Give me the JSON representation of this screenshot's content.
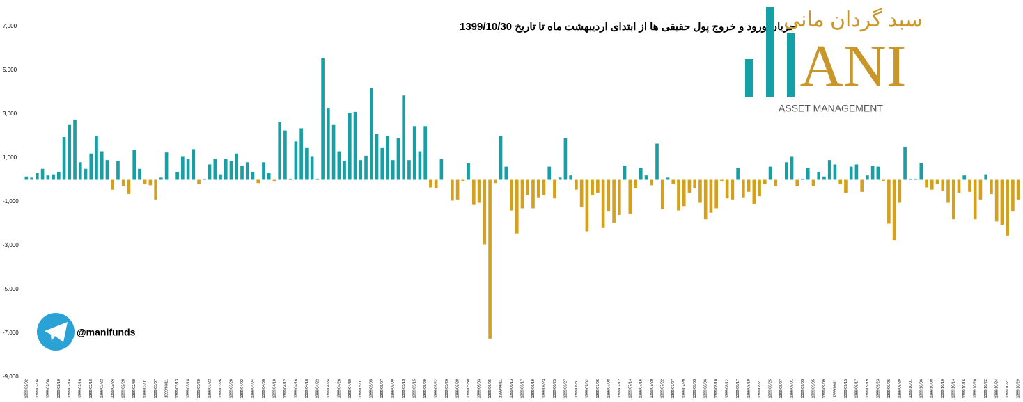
{
  "chart_data": {
    "type": "bar",
    "title": "جریان ورود و خروج پول حقیقی ها از ابتدای اردیبهشت ماه تا تاریخ 1399/10/30",
    "categories": [
      "1399/02/02",
      null,
      "1399/02/04",
      null,
      "1399/02/08",
      null,
      "1399/02/10",
      null,
      "1399/02/14",
      null,
      "1399/02/16",
      null,
      "1399/02/18",
      null,
      "1399/02/22",
      null,
      "1399/02/24",
      null,
      "1399/02/28",
      null,
      "1399/02/30",
      null,
      "1399/03/01",
      null,
      "1399/03/07",
      null,
      "1399/03/11",
      null,
      "1399/03/13",
      null,
      "1399/03/18",
      null,
      "1399/03/20",
      null,
      "1399/03/22",
      null,
      "1399/03/26",
      null,
      "1399/03/28",
      null,
      "1399/04/02",
      null,
      "1399/04/04",
      null,
      "1399/04/08",
      null,
      "1399/04/10",
      null,
      "1399/04/12",
      null,
      "1399/04/16",
      null,
      "1399/04/18",
      null,
      "1399/04/22",
      null,
      "1399/04/24",
      null,
      "1399/04/26",
      null,
      "1399/04/30",
      null,
      "1399/05/01",
      null,
      "1399/05/05",
      null,
      "1399/05/07",
      null,
      "1399/05/09",
      null,
      "1399/05/13",
      null,
      "1399/05/15",
      null,
      "1399/05/20",
      null,
      "1399/05/22",
      null,
      "1399/05/26",
      null,
      "1399/05/28",
      null,
      "1399/05/30",
      null,
      "1399/06/03",
      null,
      "1399/06/05",
      null,
      "1399/06/11",
      null,
      "1399/06/13",
      null,
      "1399/06/17",
      null,
      "1399/06/19",
      null,
      "1399/06/23",
      null,
      "1399/06/25",
      null,
      "1399/06/27",
      null,
      "1399/06/31",
      null,
      "1399/07/02",
      null,
      "1399/07/06",
      null,
      "1399/07/08",
      null,
      "1399/07/12",
      null,
      "1399/07/14",
      null,
      "1399/07/16",
      null,
      "1399/07/20",
      null,
      "1399/07/22",
      null,
      "1399/07/27",
      null,
      "1399/07/29",
      null,
      "1399/08/03",
      null,
      "1399/08/06",
      null,
      "1399/08/10",
      null,
      "1399/08/12",
      null,
      "1399/08/17",
      null,
      "1399/08/19",
      null,
      "1399/08/21",
      null,
      "1399/08/25",
      null,
      "1399/08/27",
      null,
      "1399/09/01",
      null,
      "1399/09/03",
      null,
      "1399/09/05",
      null,
      "1399/09/09",
      null,
      "1399/09/11",
      null,
      "1399/09/15",
      null,
      "1399/09/17",
      null,
      "1399/09/19",
      null,
      "1399/09/23",
      null,
      "1399/09/25",
      null,
      "1399/09/29",
      null,
      "1399/10/01",
      null,
      "1399/10/06",
      null,
      "1399/10/08",
      null,
      "1399/10/10",
      null,
      "1399/10/14",
      null,
      "1399/10/16",
      null,
      "1399/10/20",
      null,
      "1399/10/22",
      null,
      "1399/10/24",
      null,
      "1399/10/27",
      null,
      "1399/10/29"
    ],
    "values": [
      150,
      100,
      300,
      500,
      200,
      250,
      350,
      1950,
      2500,
      2750,
      800,
      500,
      1200,
      2000,
      1300,
      900,
      -450,
      850,
      -300,
      -650,
      1350,
      500,
      -200,
      -250,
      -900,
      100,
      1250,
      0,
      350,
      1050,
      950,
      1400,
      -200,
      50,
      700,
      950,
      250,
      950,
      850,
      1200,
      650,
      800,
      350,
      -150,
      800,
      300,
      -50,
      2650,
      2250,
      50,
      1750,
      2350,
      1450,
      1050,
      50,
      5550,
      3250,
      2500,
      1300,
      850,
      3050,
      3100,
      900,
      1100,
      4200,
      2100,
      1450,
      2000,
      900,
      1900,
      3850,
      900,
      2450,
      1300,
      2450,
      -350,
      -400,
      950,
      0,
      -950,
      -900,
      -50,
      750,
      -1150,
      -1050,
      -2950,
      -7250,
      -150,
      2000,
      600,
      -1400,
      -2450,
      -1300,
      -700,
      -1300,
      -800,
      -700,
      600,
      -850,
      100,
      1900,
      200,
      -450,
      -1250,
      -2350,
      -700,
      -600,
      -2200,
      -1450,
      -1950,
      -1600,
      650,
      -1550,
      -400,
      550,
      200,
      -250,
      1650,
      -1350,
      100,
      -200,
      -1400,
      -1200,
      -600,
      -400,
      -1050,
      -1800,
      -1500,
      -1300,
      -50,
      -850,
      -900,
      550,
      -800,
      -550,
      -1100,
      -750,
      -200,
      600,
      -300,
      0,
      800,
      1050,
      -300,
      50,
      550,
      -300,
      350,
      150,
      900,
      700,
      -200,
      -600,
      600,
      700,
      -550,
      200,
      650,
      600,
      -50,
      -2000,
      -2750,
      -1050,
      1500,
      50,
      50,
      750,
      -350,
      -450,
      -200,
      -500,
      -1050,
      -1800,
      -600,
      200,
      -550,
      -1800,
      -900,
      250,
      -650,
      -1900,
      -2050,
      -2550,
      -1450,
      -900
    ],
    "positive_color": "#16a0a6",
    "negative_color": "#d4a11e",
    "ylim": [
      -9000,
      7000
    ],
    "yticks": [
      {
        "value": -9000,
        "label": "-9,000"
      },
      {
        "value": -7000,
        "label": "-7,000"
      },
      {
        "value": -5000,
        "label": "-5,000"
      },
      {
        "value": -3000,
        "label": "-3,000"
      },
      {
        "value": -1000,
        "label": "-1,000"
      },
      {
        "value": 1000,
        "label": "1,000"
      },
      {
        "value": 3000,
        "label": "3,000"
      },
      {
        "value": 5000,
        "label": "5,000"
      },
      {
        "value": 7000,
        "label": "7,000"
      }
    ],
    "grid": false
  },
  "logo": {
    "persian": "سبد گردان مانی",
    "letters": "ANI",
    "tagline": "ASSET MANAGEMENT"
  },
  "telegram": {
    "handle": "@manifunds"
  }
}
